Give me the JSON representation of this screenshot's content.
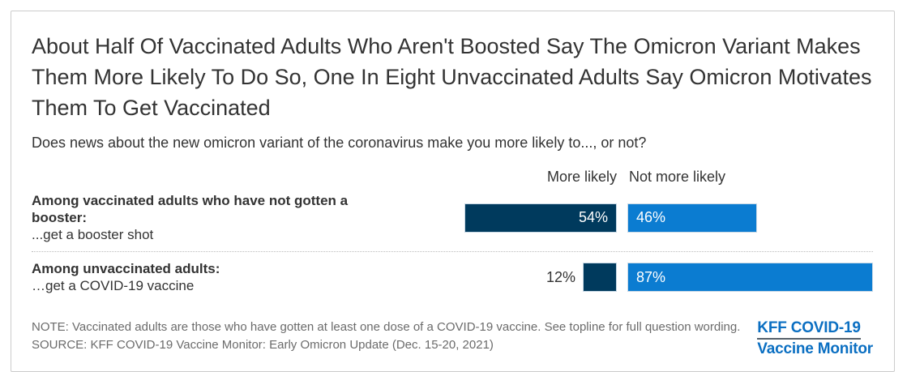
{
  "title": "About Half Of Vaccinated Adults Who Aren't Boosted Say The Omicron Variant Makes Them More Likely To Do So, One In Eight Unvaccinated Adults Say Omicron Motivates Them To Get Vaccinated",
  "subtitle": "Does news about the new omicron variant of the coronavirus make you more likely to..., or not?",
  "columns": {
    "more_likely": "More likely",
    "not_more_likely": "Not more likely"
  },
  "rows": [
    {
      "group_label": "Among vaccinated adults who have not gotten a booster:",
      "item_label": "...get a booster shot",
      "more_likely": 54,
      "more_likely_label": "54%",
      "not_more_likely": 46,
      "not_more_likely_label": "46%"
    },
    {
      "group_label": "Among unvaccinated adults:",
      "item_label": "…get a COVID-19 vaccine",
      "more_likely": 12,
      "more_likely_label": "12%",
      "not_more_likely": 87,
      "not_more_likely_label": "87%"
    }
  ],
  "note": "NOTE: Vaccinated adults are those who have gotten at least one dose of a COVID-19 vaccine. See topline for full question wording.",
  "source": "SOURCE: KFF COVID-19 Vaccine Monitor: Early Omicron Update (Dec. 15-20, 2021)",
  "logo": {
    "line1": "KFF COVID-19",
    "line2": "Vaccine Monitor"
  },
  "colors": {
    "more_likely_bar": "#003A5D",
    "not_more_likely_bar": "#0B7CD1",
    "logo_blue": "#0B6FC2"
  },
  "chart_data": {
    "type": "bar",
    "orientation": "horizontal",
    "title": "About Half Of Vaccinated Adults Who Aren't Boosted Say The Omicron Variant Makes Them More Likely To Do So, One In Eight Unvaccinated Adults Say Omicron Motivates Them To Get Vaccinated",
    "subtitle": "Does news about the new omicron variant of the coronavirus make you more likely to..., or not?",
    "categories": [
      "Among vaccinated adults who have not gotten a booster: ...get a booster shot",
      "Among unvaccinated adults: …get a COVID-19 vaccine"
    ],
    "series": [
      {
        "name": "More likely",
        "values": [
          54,
          12
        ],
        "color": "#003A5D"
      },
      {
        "name": "Not more likely",
        "values": [
          46,
          87
        ],
        "color": "#0B7CD1"
      }
    ],
    "unit": "%",
    "data_labels": true,
    "legend_position": "top-as-column-headers",
    "grid": false,
    "note": "NOTE: Vaccinated adults are those who have gotten at least one dose of a COVID-19 vaccine. See topline for full question wording.",
    "source": "SOURCE: KFF COVID-19 Vaccine Monitor: Early Omicron Update (Dec. 15-20, 2021)"
  }
}
